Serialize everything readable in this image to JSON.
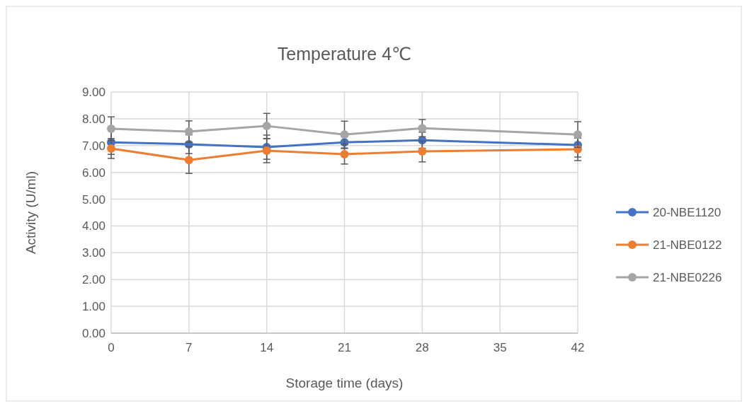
{
  "chart_data": {
    "type": "line",
    "title": "Temperature 4℃",
    "xlabel": "Storage time (days)",
    "ylabel": "Activity (U/ml)",
    "x": [
      0,
      7,
      14,
      21,
      28,
      42
    ],
    "series": [
      {
        "name": "20-NBE1120",
        "color": "#4472c4",
        "values": [
          7.12,
          7.05,
          6.94,
          7.12,
          7.2,
          7.02
        ],
        "errors": [
          0.45,
          0.35,
          0.45,
          0.23,
          0.3,
          0.45
        ]
      },
      {
        "name": "21-NBE0122",
        "color": "#ed7d31",
        "values": [
          6.89,
          6.46,
          6.81,
          6.68,
          6.78,
          6.86
        ],
        "errors": [
          0.37,
          0.5,
          0.45,
          0.37,
          0.39,
          0.42
        ]
      },
      {
        "name": "21-NBE0226",
        "color": "#a5a5a5",
        "values": [
          7.63,
          7.52,
          7.73,
          7.41,
          7.65,
          7.41
        ],
        "errors": [
          0.44,
          0.4,
          0.47,
          0.5,
          0.32,
          0.48
        ]
      }
    ],
    "xlim": [
      0,
      42
    ],
    "xticks": [
      0,
      7,
      14,
      21,
      28,
      35,
      42
    ],
    "ylim": [
      0,
      9
    ],
    "yticks": [
      {
        "value": 0,
        "label": "0.00"
      },
      {
        "value": 1,
        "label": "1.00"
      },
      {
        "value": 2,
        "label": "2.00"
      },
      {
        "value": 3,
        "label": "3.00"
      },
      {
        "value": 4,
        "label": "4.00"
      },
      {
        "value": 5,
        "label": "5.00"
      },
      {
        "value": 6,
        "label": "6.00"
      },
      {
        "value": 7,
        "label": "7.00"
      },
      {
        "value": 8,
        "label": "8.00"
      },
      {
        "value": 9,
        "label": "9.00"
      }
    ],
    "grid": true,
    "legend": "right",
    "marker": "circle",
    "line_style": "solid"
  }
}
